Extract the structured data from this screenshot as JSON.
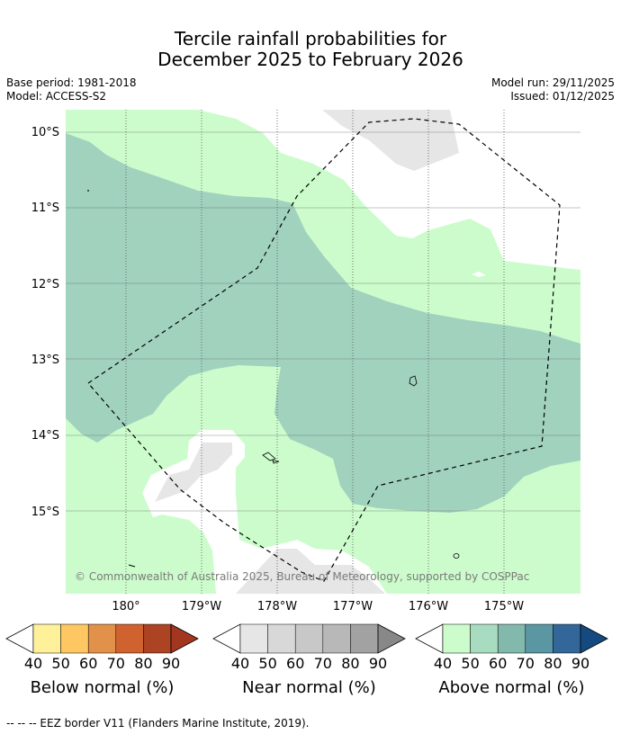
{
  "title": {
    "line1": "Tercile rainfall probabilities for",
    "line2": "December 2025 to February 2026"
  },
  "meta": {
    "base_period": "Base period: 1981-2018",
    "model": "Model: ACCESS-S2",
    "model_run": "Model run: 29/11/2025",
    "issued": "Issued: 01/12/2025"
  },
  "map": {
    "lat_labels": [
      "10°S",
      "11°S",
      "12°S",
      "13°S",
      "14°S",
      "15°S"
    ],
    "lon_labels": [
      "180°",
      "179°W",
      "178°W",
      "177°W",
      "176°W",
      "175°W"
    ],
    "copyright": "© Commonwealth of Australia 2025, Bureau of Meteorology, supported by COSPPac",
    "colors": {
      "above_40": "#ccfccc",
      "above_50": "#a0d2be",
      "near_40": "#e6e6e6",
      "eez_border": "#000000"
    }
  },
  "colorbars": [
    {
      "label": "Below normal (%)",
      "ticks": [
        "40",
        "50",
        "60",
        "70",
        "80",
        "90"
      ],
      "colors": [
        "#fff09a",
        "#fec761",
        "#e2914a",
        "#d0622f",
        "#ac4323",
        "#a2361f"
      ]
    },
    {
      "label": "Near normal (%)",
      "ticks": [
        "40",
        "50",
        "60",
        "70",
        "80",
        "90"
      ],
      "colors": [
        "#e6e6e6",
        "#d8d8d8",
        "#c8c8c8",
        "#b8b8b8",
        "#a2a2a2",
        "#888888"
      ]
    },
    {
      "label": "Above normal (%)",
      "ticks": [
        "40",
        "50",
        "60",
        "70",
        "80",
        "90"
      ],
      "colors": [
        "#ccfccc",
        "#a8dcc0",
        "#83b9ad",
        "#5b96a3",
        "#336799",
        "#144a7f"
      ]
    }
  ],
  "footnote": "-- -- -- EEZ border V11 (Flanders Marine Institute, 2019)."
}
